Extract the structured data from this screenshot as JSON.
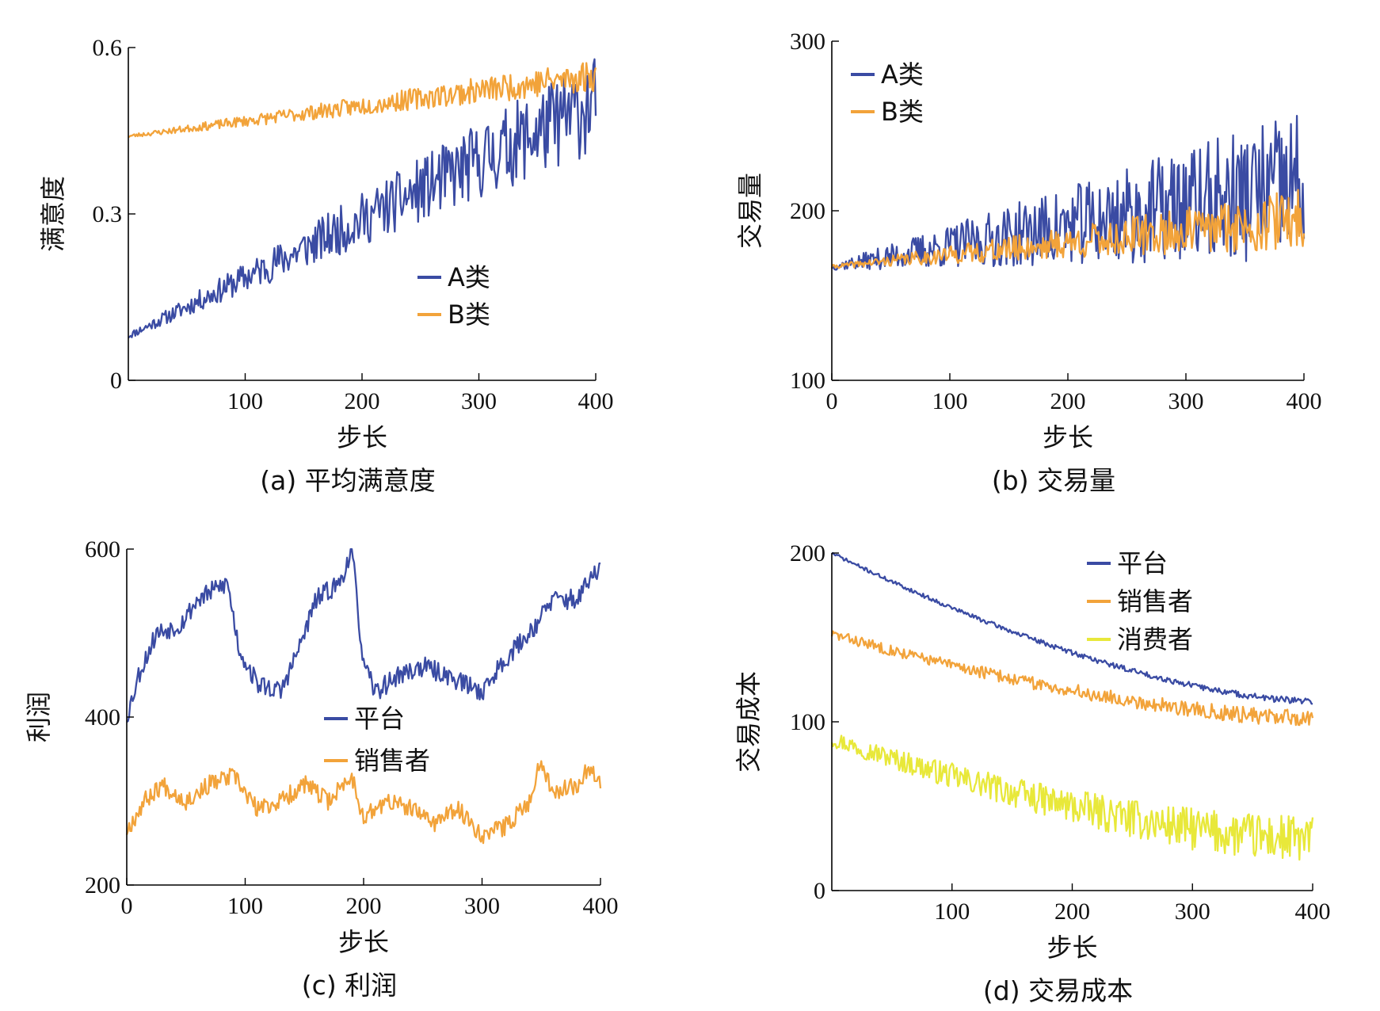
{
  "colors": {
    "blue": "#3A4BA3",
    "orange": "#F2A33A",
    "yellow": "#E8E83A"
  },
  "chart_data": [
    {
      "id": "a",
      "type": "line",
      "caption": "(a) 平均满意度",
      "xlabel": "步长",
      "ylabel": "满意度",
      "xlim": [
        0,
        400
      ],
      "ylim": [
        0,
        0.6
      ],
      "xticks": [
        100,
        200,
        300,
        400
      ],
      "xtick_labels": [
        "100",
        "200",
        "300",
        "400"
      ],
      "yticks": [
        0,
        0.3,
        0.6
      ],
      "ytick_labels": [
        "0",
        "0.3",
        "0.6"
      ],
      "legend": "center-right",
      "series": [
        {
          "name": "A类",
          "color": "#3A4BA3",
          "start": 0.08,
          "end": 0.5,
          "noise_start": 0.006,
          "noise_end": 0.09,
          "seed": 11
        },
        {
          "name": "B类",
          "color": "#F2A33A",
          "start": 0.44,
          "end": 0.55,
          "noise_start": 0.003,
          "noise_end": 0.03,
          "seed": 23
        }
      ]
    },
    {
      "id": "b",
      "type": "line",
      "caption": "(b) 交易量",
      "xlabel": "步长",
      "ylabel": "交易量",
      "xlim": [
        0,
        400
      ],
      "ylim": [
        100,
        300
      ],
      "xticks": [
        0,
        100,
        200,
        300,
        400
      ],
      "xtick_labels": [
        "0",
        "100",
        "200",
        "300",
        "400"
      ],
      "yticks": [
        100,
        200,
        300
      ],
      "ytick_labels": [
        "100",
        "200",
        "300"
      ],
      "legend": "top-left",
      "series": [
        {
          "name": "A类",
          "color": "#3A4BA3",
          "start": 167,
          "end": 215,
          "noise_start": 2,
          "noise_end": 45,
          "seed": 37
        },
        {
          "name": "B类",
          "color": "#F2A33A",
          "start": 167,
          "end": 195,
          "noise_start": 1,
          "noise_end": 18,
          "seed": 41
        }
      ]
    },
    {
      "id": "c",
      "type": "line",
      "caption": "(c) 利润",
      "xlabel": "步长",
      "ylabel": "利润",
      "xlim": [
        0,
        400
      ],
      "ylim": [
        200,
        600
      ],
      "xticks": [
        0,
        100,
        200,
        300,
        400
      ],
      "xtick_labels": [
        "0",
        "100",
        "200",
        "300",
        "400"
      ],
      "yticks": [
        200,
        400,
        600
      ],
      "ytick_labels": [
        "200",
        "400",
        "600"
      ],
      "legend": "center",
      "series": [
        {
          "name": "平台",
          "color": "#3A4BA3",
          "anchors": [
            [
              0,
              400
            ],
            [
              10,
              450
            ],
            [
              25,
              500
            ],
            [
              45,
              510
            ],
            [
              60,
              540
            ],
            [
              85,
              560
            ],
            [
              95,
              480
            ],
            [
              110,
              440
            ],
            [
              130,
              430
            ],
            [
              145,
              480
            ],
            [
              160,
              540
            ],
            [
              180,
              560
            ],
            [
              190,
              600
            ],
            [
              200,
              460
            ],
            [
              210,
              430
            ],
            [
              230,
              450
            ],
            [
              250,
              460
            ],
            [
              270,
              450
            ],
            [
              300,
              430
            ],
            [
              320,
              470
            ],
            [
              340,
              500
            ],
            [
              360,
              540
            ],
            [
              380,
              540
            ],
            [
              400,
              580
            ]
          ],
          "noise": 12,
          "seed": 53
        },
        {
          "name": "销售者",
          "color": "#F2A33A",
          "anchors": [
            [
              0,
              265
            ],
            [
              15,
              300
            ],
            [
              30,
              320
            ],
            [
              50,
              300
            ],
            [
              70,
              320
            ],
            [
              90,
              330
            ],
            [
              110,
              290
            ],
            [
              130,
              300
            ],
            [
              150,
              320
            ],
            [
              170,
              300
            ],
            [
              190,
              330
            ],
            [
              200,
              280
            ],
            [
              220,
              300
            ],
            [
              240,
              290
            ],
            [
              260,
              275
            ],
            [
              280,
              290
            ],
            [
              300,
              260
            ],
            [
              320,
              270
            ],
            [
              340,
              300
            ],
            [
              350,
              350
            ],
            [
              360,
              310
            ],
            [
              380,
              320
            ],
            [
              390,
              340
            ],
            [
              400,
              325
            ]
          ],
          "noise": 11,
          "seed": 67
        }
      ]
    },
    {
      "id": "d",
      "type": "line",
      "caption": "(d) 交易成本",
      "xlabel": "步长",
      "ylabel": "交易成本",
      "xlim": [
        0,
        400
      ],
      "ylim": [
        0,
        200
      ],
      "xticks": [
        100,
        200,
        300,
        400
      ],
      "xtick_labels": [
        "100",
        "200",
        "300",
        "400"
      ],
      "yticks": [
        0,
        100,
        200
      ],
      "ytick_labels": [
        "0",
        "100",
        "200"
      ],
      "legend": "top-right",
      "series": [
        {
          "name": "平台",
          "color": "#3A4BA3",
          "start": 200,
          "end": 112,
          "noise_start": 1,
          "noise_end": 2,
          "seed": 71
        },
        {
          "name": "销售者",
          "color": "#F2A33A",
          "start": 152,
          "end": 102,
          "noise_start": 3,
          "noise_end": 5,
          "seed": 83
        },
        {
          "name": "消费者",
          "color": "#E8E83A",
          "start": 90,
          "end": 30,
          "noise_start": 5,
          "noise_end": 15,
          "seed": 97
        }
      ]
    }
  ]
}
